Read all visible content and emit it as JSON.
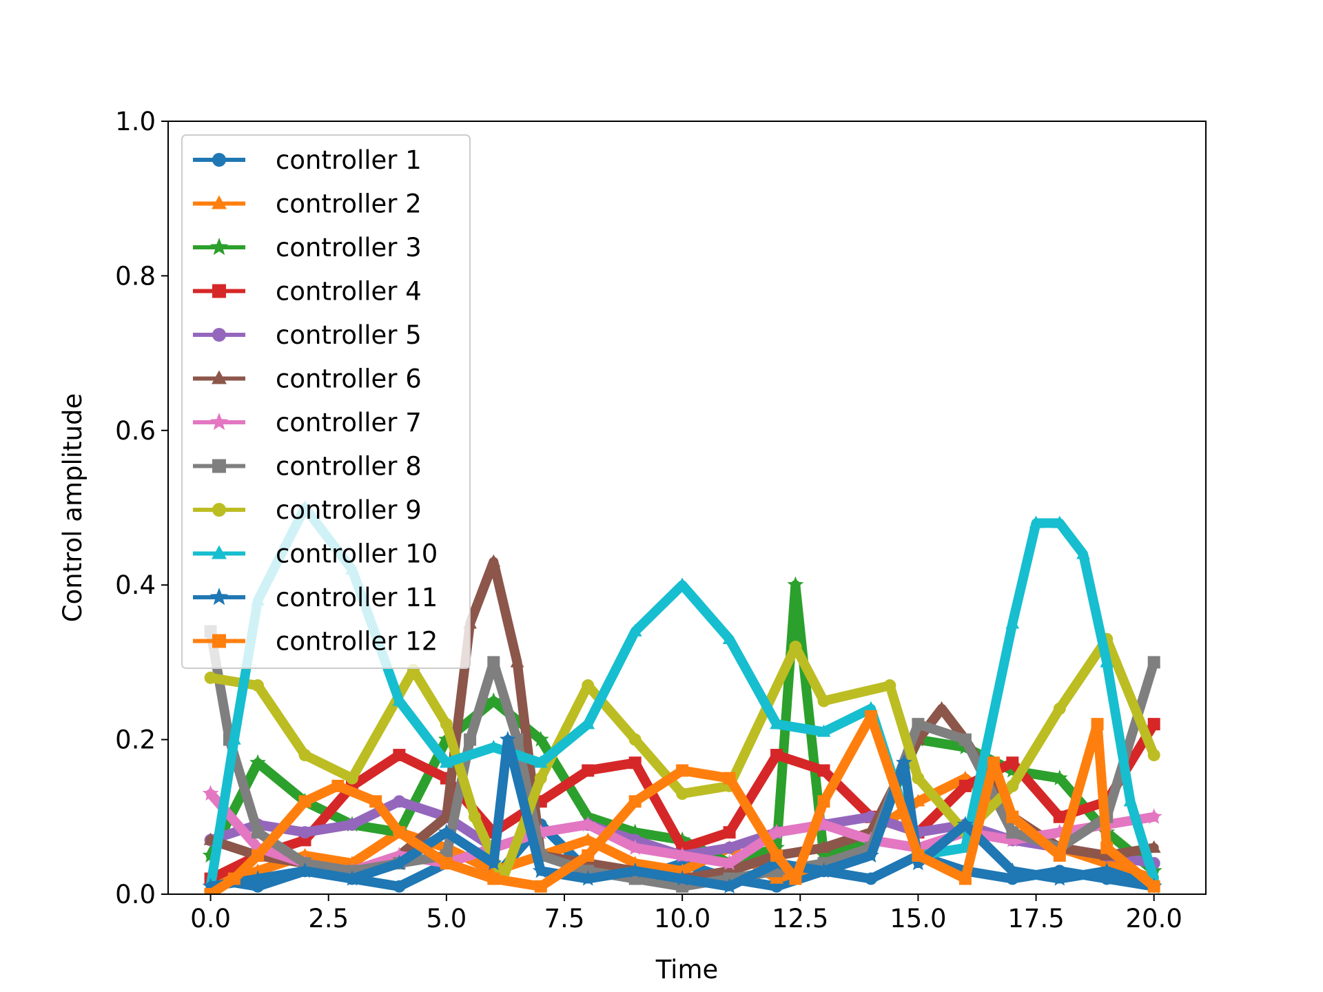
{
  "chart_data": {
    "type": "line",
    "title": "",
    "xlabel": "Time",
    "ylabel": "Control amplitude",
    "xlim": [
      -0.9,
      21.1
    ],
    "ylim": [
      0.0,
      1.0
    ],
    "xticks": [
      0.0,
      2.5,
      5.0,
      7.5,
      10.0,
      12.5,
      15.0,
      17.5,
      20.0
    ],
    "xtick_labels": [
      "0.0",
      "2.5",
      "5.0",
      "7.5",
      "10.0",
      "12.5",
      "15.0",
      "17.5",
      "20.0"
    ],
    "yticks": [
      0.0,
      0.2,
      0.4,
      0.6,
      0.8,
      1.0
    ],
    "ytick_labels": [
      "0.0",
      "0.2",
      "0.4",
      "0.6",
      "0.8",
      "1.0"
    ],
    "grid": false,
    "legend_position": "upper-left",
    "series": [
      {
        "name": "controller 1",
        "color": "#1f77b4",
        "marker": "circle",
        "x": [
          0,
          1,
          2,
          3,
          4,
          5,
          6,
          7,
          8,
          9,
          10,
          11,
          12,
          13,
          14,
          15,
          16,
          17,
          18,
          19,
          20
        ],
        "y": [
          0.02,
          0.01,
          0.03,
          0.02,
          0.01,
          0.04,
          0.02,
          0.09,
          0.03,
          0.02,
          0.04,
          0.02,
          0.01,
          0.03,
          0.02,
          0.05,
          0.03,
          0.02,
          0.03,
          0.02,
          0.01
        ]
      },
      {
        "name": "controller 2",
        "color": "#ff7f0e",
        "marker": "triangle",
        "x": [
          0,
          1,
          2,
          3,
          4,
          5,
          6,
          7,
          8,
          9,
          10,
          11,
          12,
          13,
          14,
          15,
          16,
          17,
          18,
          19,
          20
        ],
        "y": [
          0.01,
          0.03,
          0.05,
          0.04,
          0.08,
          0.06,
          0.03,
          0.05,
          0.07,
          0.04,
          0.03,
          0.06,
          0.02,
          0.04,
          0.08,
          0.12,
          0.15,
          0.1,
          0.06,
          0.04,
          0.02
        ]
      },
      {
        "name": "controller 3",
        "color": "#2ca02c",
        "marker": "star",
        "x": [
          0,
          1,
          2,
          3,
          4,
          5,
          6,
          7,
          8,
          9,
          10,
          11,
          12,
          12.4,
          13,
          14,
          15,
          16,
          17,
          18,
          19,
          20
        ],
        "y": [
          0.05,
          0.17,
          0.12,
          0.09,
          0.08,
          0.2,
          0.25,
          0.2,
          0.1,
          0.08,
          0.07,
          0.04,
          0.06,
          0.4,
          0.05,
          0.07,
          0.2,
          0.19,
          0.16,
          0.15,
          0.08,
          0.03
        ]
      },
      {
        "name": "controller 4",
        "color": "#d62728",
        "marker": "square",
        "x": [
          0,
          1,
          2,
          3,
          4,
          5,
          6,
          7,
          8,
          9,
          10,
          11,
          12,
          13,
          14,
          15,
          16,
          17,
          18,
          19,
          20
        ],
        "y": [
          0.02,
          0.05,
          0.07,
          0.14,
          0.18,
          0.15,
          0.08,
          0.12,
          0.16,
          0.17,
          0.06,
          0.08,
          0.18,
          0.16,
          0.1,
          0.08,
          0.14,
          0.17,
          0.1,
          0.12,
          0.22
        ]
      },
      {
        "name": "controller 5",
        "color": "#9467bd",
        "marker": "circle",
        "x": [
          0,
          1,
          2,
          3,
          4,
          5,
          6,
          7,
          8,
          9,
          10,
          11,
          12,
          13,
          14,
          15,
          16,
          17,
          18,
          19,
          20
        ],
        "y": [
          0.07,
          0.09,
          0.08,
          0.09,
          0.12,
          0.1,
          0.06,
          0.08,
          0.09,
          0.07,
          0.05,
          0.06,
          0.08,
          0.09,
          0.1,
          0.08,
          0.09,
          0.07,
          0.06,
          0.05,
          0.04
        ]
      },
      {
        "name": "controller 6",
        "color": "#8c564b",
        "marker": "triangle",
        "x": [
          0,
          1,
          2,
          3,
          4,
          5,
          5.5,
          6,
          6.5,
          7,
          8,
          9,
          10,
          11,
          12,
          13,
          14,
          15,
          15.5,
          16,
          17,
          18,
          19,
          20
        ],
        "y": [
          0.07,
          0.05,
          0.04,
          0.03,
          0.05,
          0.1,
          0.35,
          0.43,
          0.3,
          0.05,
          0.04,
          0.03,
          0.02,
          0.03,
          0.05,
          0.06,
          0.08,
          0.2,
          0.24,
          0.2,
          0.1,
          0.06,
          0.05,
          0.06
        ]
      },
      {
        "name": "controller 7",
        "color": "#e377c2",
        "marker": "star",
        "x": [
          0,
          1,
          2,
          3,
          4,
          5,
          6,
          7,
          8,
          9,
          10,
          11,
          12,
          13,
          14,
          15,
          16,
          17,
          18,
          19,
          20
        ],
        "y": [
          0.13,
          0.06,
          0.04,
          0.03,
          0.05,
          0.04,
          0.06,
          0.08,
          0.09,
          0.06,
          0.05,
          0.04,
          0.08,
          0.09,
          0.07,
          0.06,
          0.08,
          0.07,
          0.08,
          0.09,
          0.1
        ]
      },
      {
        "name": "controller 8",
        "color": "#7f7f7f",
        "marker": "square",
        "x": [
          0,
          0.4,
          1,
          2,
          3,
          4,
          5,
          5.5,
          6,
          6.5,
          7,
          8,
          9,
          10,
          11,
          12,
          13,
          14,
          15,
          16,
          17,
          18,
          19,
          20
        ],
        "y": [
          0.34,
          0.2,
          0.08,
          0.04,
          0.03,
          0.04,
          0.05,
          0.2,
          0.3,
          0.2,
          0.05,
          0.03,
          0.02,
          0.01,
          0.02,
          0.03,
          0.04,
          0.06,
          0.22,
          0.2,
          0.08,
          0.06,
          0.1,
          0.3
        ]
      },
      {
        "name": "controller 9",
        "color": "#bcbd22",
        "marker": "circle",
        "x": [
          0,
          1,
          2,
          3,
          4.3,
          5,
          5.6,
          6.2,
          7,
          8,
          9,
          10,
          11,
          12.4,
          13,
          14.4,
          15,
          16,
          17,
          18,
          19,
          20
        ],
        "y": [
          0.28,
          0.27,
          0.18,
          0.15,
          0.29,
          0.22,
          0.1,
          0.02,
          0.15,
          0.27,
          0.2,
          0.13,
          0.14,
          0.32,
          0.25,
          0.27,
          0.15,
          0.08,
          0.14,
          0.24,
          0.33,
          0.18
        ]
      },
      {
        "name": "controller 10",
        "color": "#17becf",
        "marker": "triangle",
        "x": [
          0,
          0.5,
          1,
          2,
          3,
          4,
          5,
          6,
          7,
          8,
          9,
          10,
          11,
          12,
          13,
          14,
          15,
          16,
          17,
          17.5,
          18,
          18.5,
          19,
          19.5,
          20
        ],
        "y": [
          0.01,
          0.2,
          0.38,
          0.5,
          0.42,
          0.25,
          0.17,
          0.19,
          0.17,
          0.22,
          0.34,
          0.4,
          0.33,
          0.22,
          0.21,
          0.24,
          0.05,
          0.06,
          0.35,
          0.48,
          0.48,
          0.44,
          0.3,
          0.12,
          0.02
        ]
      },
      {
        "name": "controller 11",
        "color": "#1f77b4",
        "marker": "star",
        "x": [
          0,
          1,
          2,
          3,
          4,
          5,
          6,
          6.3,
          7,
          8,
          9,
          10,
          11,
          12,
          13,
          14,
          14.7,
          15,
          16,
          17,
          18,
          19,
          20
        ],
        "y": [
          0.01,
          0.02,
          0.03,
          0.02,
          0.04,
          0.08,
          0.04,
          0.2,
          0.03,
          0.02,
          0.03,
          0.02,
          0.01,
          0.04,
          0.03,
          0.05,
          0.17,
          0.04,
          0.09,
          0.03,
          0.02,
          0.03,
          0.01
        ]
      },
      {
        "name": "controller 12",
        "color": "#ff7f0e",
        "marker": "square",
        "x": [
          0,
          0.5,
          1,
          2,
          2.7,
          3.5,
          4,
          5,
          6,
          7,
          8,
          9,
          10,
          11,
          12,
          12.4,
          13,
          14,
          15,
          16,
          16.6,
          17,
          18,
          18.8,
          19,
          20
        ],
        "y": [
          0.0,
          0.02,
          0.05,
          0.12,
          0.14,
          0.12,
          0.08,
          0.04,
          0.02,
          0.01,
          0.05,
          0.12,
          0.16,
          0.15,
          0.05,
          0.02,
          0.12,
          0.23,
          0.05,
          0.02,
          0.17,
          0.1,
          0.05,
          0.22,
          0.06,
          0.01
        ]
      }
    ]
  }
}
